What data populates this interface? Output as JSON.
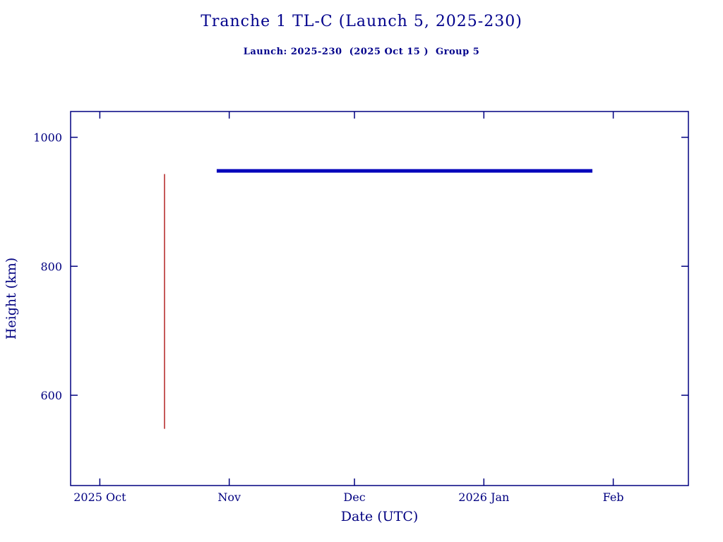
{
  "header": {
    "title": "Tranche 1 TL-C (Launch 5, 2025-230)",
    "subtitle": "Launch: 2025-230  (2025 Oct 15 )  Group 5"
  },
  "chart_data": {
    "type": "line",
    "title": "Tranche 1 TL-C (Launch 5, 2025-230)",
    "subtitle": "Launch: 2025-230  (2025 Oct 15 )  Group 5",
    "xlabel": "Date (UTC)",
    "ylabel": "Height (km)",
    "grid": false,
    "legend": "none",
    "x_axis": {
      "unit": "days since 2025 Oct 1",
      "range": [
        -7,
        141
      ],
      "ticks": [
        {
          "pos": 0,
          "label": "2025 Oct"
        },
        {
          "pos": 31,
          "label": "Nov"
        },
        {
          "pos": 61,
          "label": "Dec"
        },
        {
          "pos": 92,
          "label": "2026 Jan"
        },
        {
          "pos": 123,
          "label": "Feb"
        }
      ]
    },
    "y_axis": {
      "range": [
        460,
        1040
      ],
      "ticks": [
        600,
        800,
        1000
      ]
    },
    "series": [
      {
        "name": "launch-ascent-spread",
        "shape": "vertical-line",
        "color": "#b22222",
        "x": 15.5,
        "y_from": 548,
        "y_to": 943,
        "stroke_width": 1.5
      },
      {
        "name": "operational-altitude",
        "shape": "horizontal-line",
        "color": "#0000bb",
        "y": 948,
        "x_from": 28,
        "x_to": 118,
        "stroke_width": 5
      }
    ],
    "colors": {
      "axis": "#000080",
      "text": "#000080"
    }
  }
}
